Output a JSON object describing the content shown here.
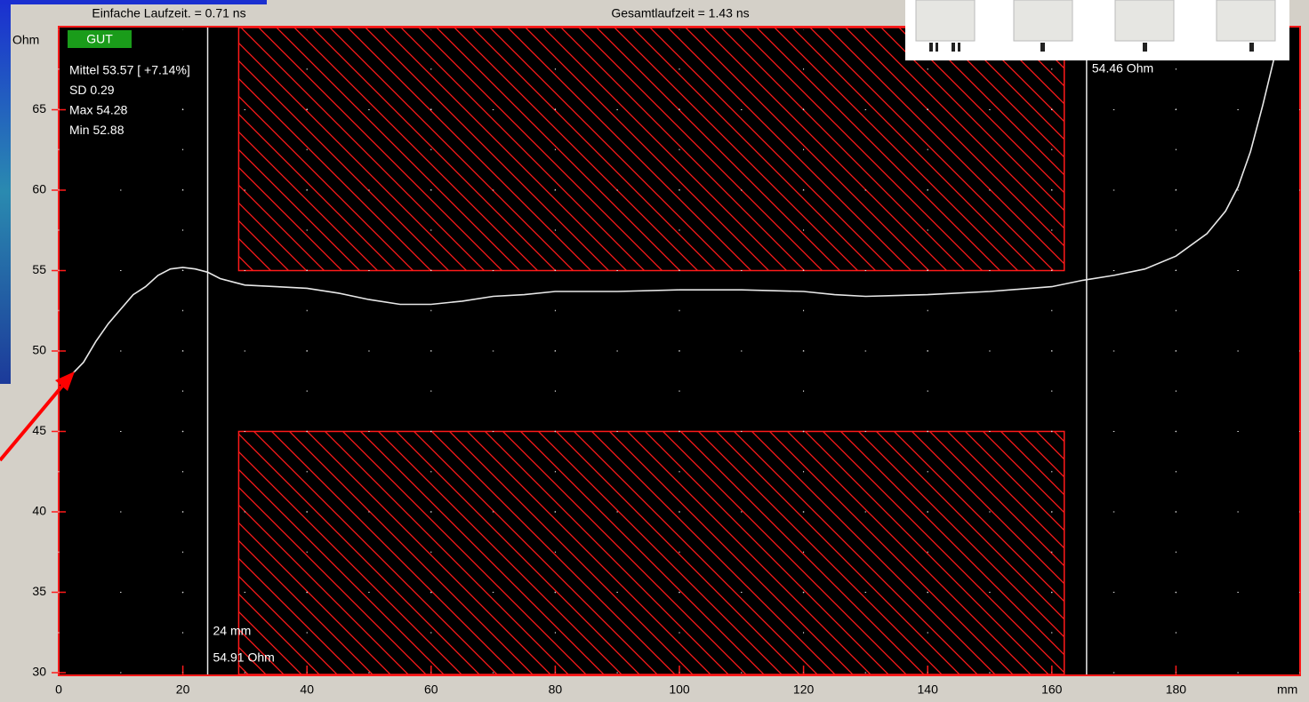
{
  "chart_data": {
    "type": "line",
    "header": [
      "Einfache Laufzeit. = 0.71 ns",
      "Gesamtlaufzeit = 1.43 ns"
    ],
    "y_label": "Ohm",
    "x_label": "mm",
    "status": "GUT",
    "stats": [
      "Mittel 53.57 [ +7.14%]",
      "SD   0.29",
      "Max  54.28",
      "Min   52.88"
    ],
    "x": [
      1.3,
      2,
      4,
      6,
      8,
      10,
      12,
      14,
      16,
      18,
      20,
      22,
      24,
      26,
      28,
      30,
      35,
      40,
      45,
      50,
      55,
      60,
      65,
      70,
      75,
      80,
      90,
      100,
      110,
      120,
      125,
      130,
      140,
      150,
      160,
      165,
      170,
      175,
      180,
      185,
      188,
      190,
      192,
      194,
      196,
      197
    ],
    "values": [
      48.3,
      48.5,
      49.3,
      50.6,
      51.7,
      52.6,
      53.5,
      54.0,
      54.7,
      55.1,
      55.2,
      55.1,
      54.9,
      54.5,
      54.3,
      54.1,
      54.0,
      53.9,
      53.6,
      53.2,
      52.9,
      52.9,
      53.1,
      53.4,
      53.5,
      53.7,
      53.7,
      53.8,
      53.8,
      53.7,
      53.5,
      53.4,
      53.5,
      53.7,
      54.0,
      54.4,
      54.7,
      55.1,
      55.9,
      57.3,
      58.7,
      60.2,
      62.4,
      65.3,
      68.5,
      69.6
    ],
    "color": "#e8e8e8",
    "limits": {
      "upper": 55,
      "lower": 45,
      "x_from": 29,
      "x_to": 162,
      "color": "#ff1a1a"
    },
    "cursors": [
      {
        "x": 24,
        "labels": [
          "24 mm",
          "54.91 Ohm"
        ]
      },
      {
        "x": 165.6,
        "labels": [
          "54.46 Ohm"
        ]
      }
    ],
    "xlim": [
      0,
      200
    ],
    "ylim": [
      30,
      70
    ],
    "xticks": [
      0,
      20,
      40,
      60,
      80,
      100,
      120,
      140,
      160,
      180
    ],
    "yticks": [
      30,
      35,
      40,
      45,
      50,
      55,
      60,
      65
    ],
    "grid": true
  }
}
